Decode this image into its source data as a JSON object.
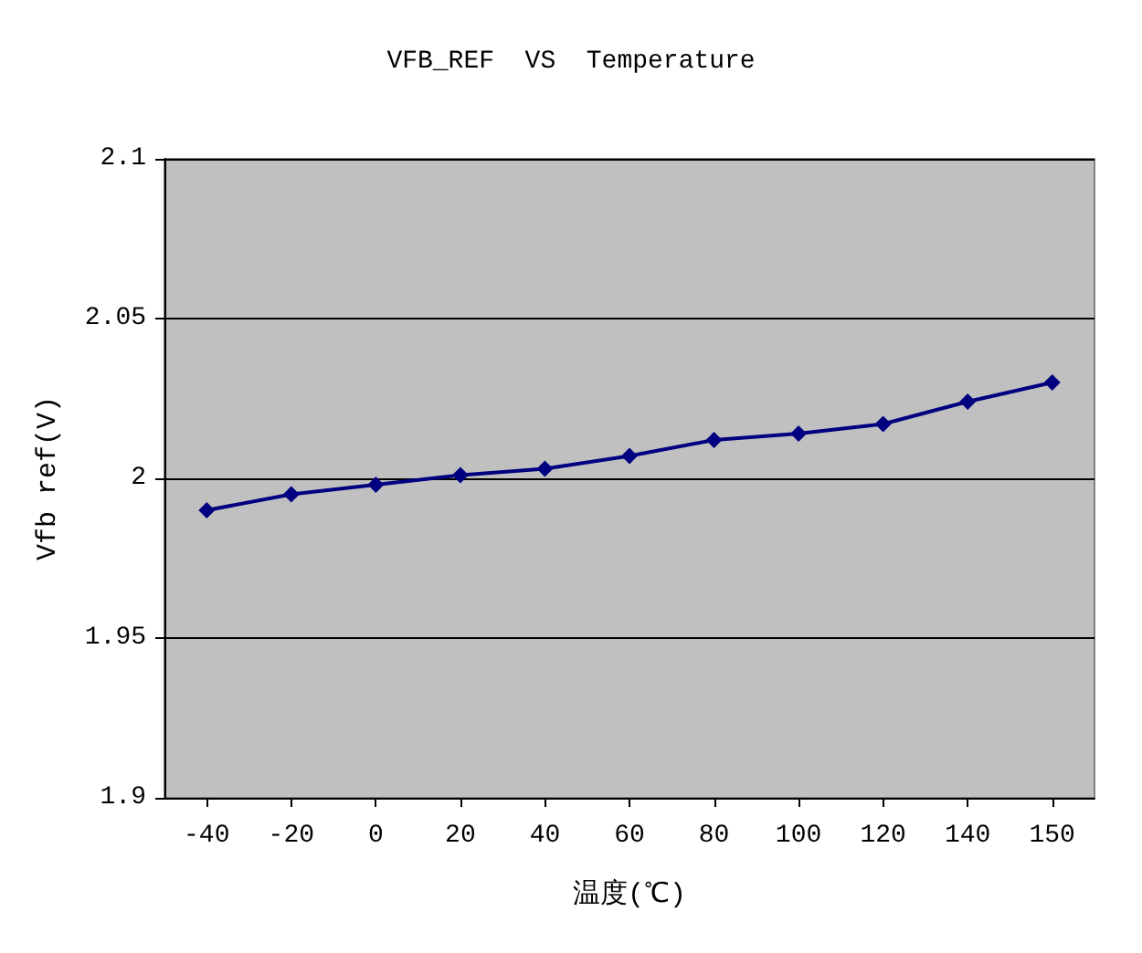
{
  "chart_data": {
    "type": "line",
    "title": "VFB_REF  VS  Temperature",
    "xlabel": "温度(℃)",
    "ylabel": "Vfb ref(V)",
    "categories": [
      "-40",
      "-20",
      "0",
      "20",
      "40",
      "60",
      "80",
      "100",
      "120",
      "140",
      "150"
    ],
    "series": [
      {
        "color": "#000080",
        "values": [
          1.99,
          1.995,
          1.998,
          2.001,
          2.003,
          2.007,
          2.012,
          2.014,
          2.017,
          2.024,
          2.03
        ]
      }
    ],
    "ylim": [
      1.9,
      2.1
    ],
    "yticks": [
      1.9,
      1.95,
      2,
      2.05,
      2.1
    ],
    "grid": "y",
    "marker": "diamond",
    "line_style": "solid"
  }
}
